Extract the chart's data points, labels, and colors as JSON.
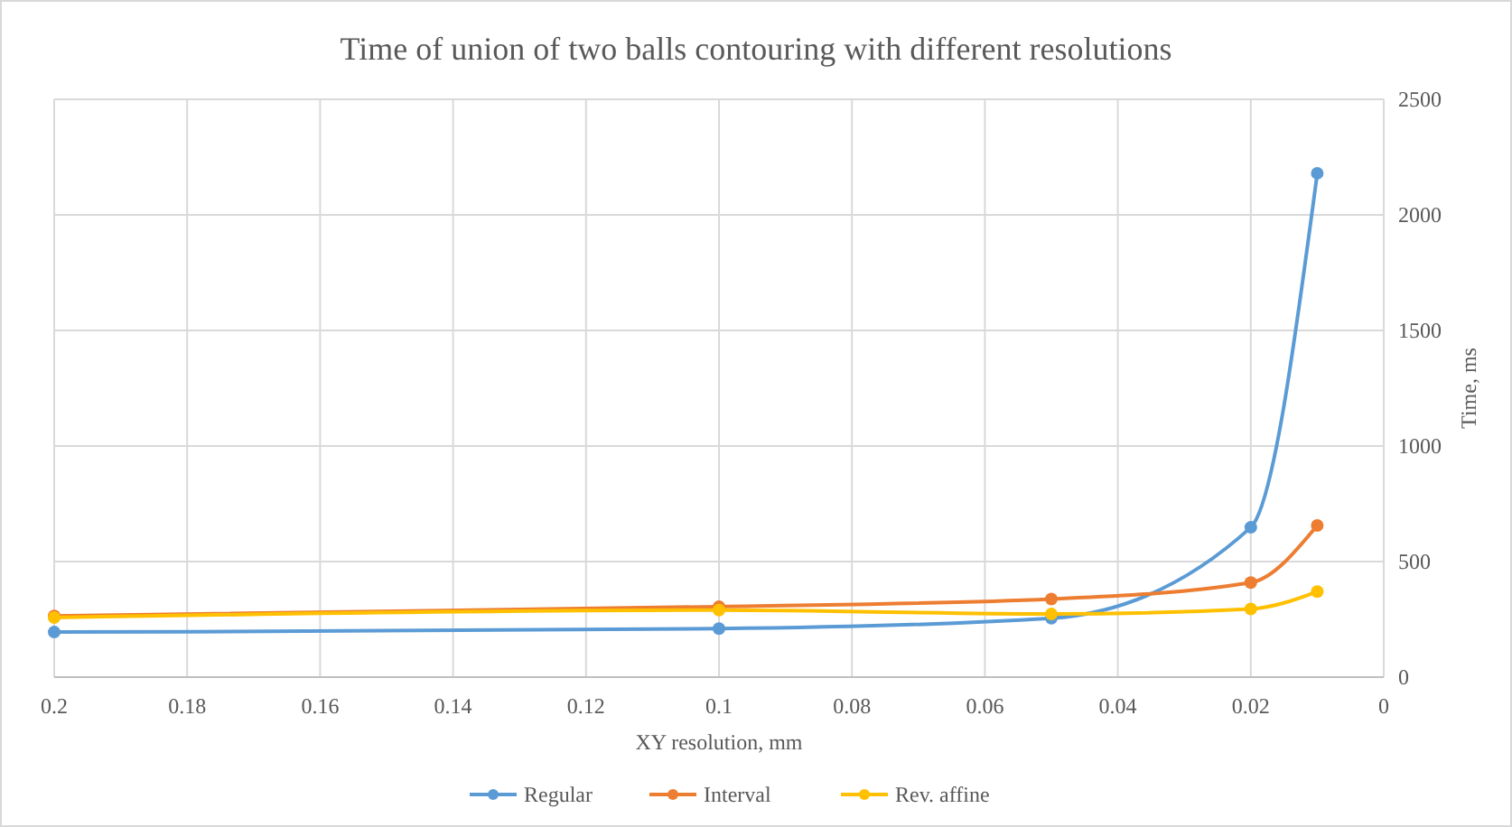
{
  "chart_data": {
    "type": "line",
    "title": "Time of union of two balls contouring with different resolutions",
    "xlabel": "XY resolution, mm",
    "ylabel": "Time,  ms",
    "x": [
      0.2,
      0.1,
      0.05,
      0.02,
      0.01
    ],
    "series": [
      {
        "name": "Regular",
        "color": "#5b9bd5",
        "values": [
          195,
          210,
          255,
          648,
          2180
        ]
      },
      {
        "name": "Interval",
        "color": "#ed7d31",
        "values": [
          265,
          305,
          338,
          409,
          656
        ]
      },
      {
        "name": "Rev. affine",
        "color": "#ffc000",
        "values": [
          258,
          290,
          273,
          295,
          370
        ]
      }
    ],
    "xlim": [
      0.2,
      0
    ],
    "xticks": [
      0.2,
      0.18,
      0.16,
      0.14,
      0.12,
      0.1,
      0.08,
      0.06,
      0.04,
      0.02,
      0
    ],
    "ylim": [
      0,
      2500
    ],
    "yticks": [
      0,
      500,
      1000,
      1500,
      2000,
      2500
    ],
    "grid": true,
    "legend": "bottom",
    "marker": "circle",
    "line_style": "solid"
  }
}
